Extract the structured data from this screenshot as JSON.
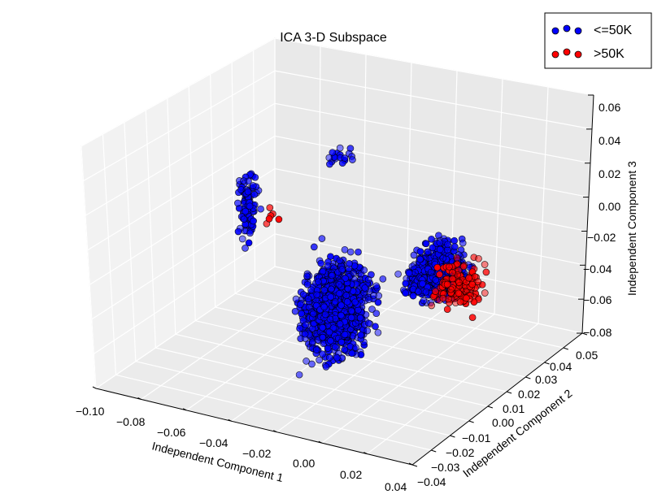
{
  "chart_data": {
    "type": "scatter",
    "projection": "3d",
    "title": "ICA 3-D Subspace",
    "xlabel": "Independent Component 1",
    "ylabel": "Independent Component 2",
    "zlabel": "Independent Component 3",
    "xlim": [
      -0.1,
      0.04
    ],
    "ylim": [
      -0.04,
      0.05
    ],
    "zlim": [
      -0.08,
      0.06
    ],
    "xticks": [
      "−0.10",
      "−0.08",
      "−0.06",
      "−0.04",
      "−0.02",
      "0.00",
      "0.02",
      "0.04"
    ],
    "yticks": [
      "−0.04",
      "−0.03",
      "−0.02",
      "−0.01",
      "0.00",
      "0.01",
      "0.02",
      "0.03",
      "0.04",
      "0.05"
    ],
    "zticks": [
      "−0.08",
      "−0.06",
      "−0.04",
      "−0.02",
      "0.00",
      "0.02",
      "0.04",
      "0.06"
    ],
    "grid": true,
    "legend_position": "top-right",
    "series": [
      {
        "name": "<=50K",
        "color": "#0000ff",
        "clusters": [
          {
            "x": [
              -0.095,
              -0.085
            ],
            "y": [
              0.02,
              0.03
            ],
            "z": [
              -0.05,
              0.01
            ],
            "n": 95
          },
          {
            "x": [
              -0.065,
              -0.045
            ],
            "y": [
              0.03,
              0.04
            ],
            "z": [
              0.005,
              0.015
            ],
            "n": 18
          },
          {
            "x": [
              -0.03,
              0.0
            ],
            "y": [
              -0.03,
              0.0
            ],
            "z": [
              -0.06,
              0.01
            ],
            "n": 1100
          },
          {
            "x": [
              0.0,
              0.025
            ],
            "y": [
              -0.01,
              0.02
            ],
            "z": [
              -0.03,
              0.005
            ],
            "n": 650
          }
        ]
      },
      {
        "name": ">50K",
        "color": "#ff0000",
        "clusters": [
          {
            "x": [
              0.005,
              0.035
            ],
            "y": [
              -0.005,
              0.02
            ],
            "z": [
              -0.04,
              0.0
            ],
            "n": 140
          },
          {
            "x": [
              -0.09,
              -0.07
            ],
            "y": [
              0.02,
              0.03
            ],
            "z": [
              -0.04,
              -0.01
            ],
            "n": 6
          }
        ]
      }
    ]
  }
}
